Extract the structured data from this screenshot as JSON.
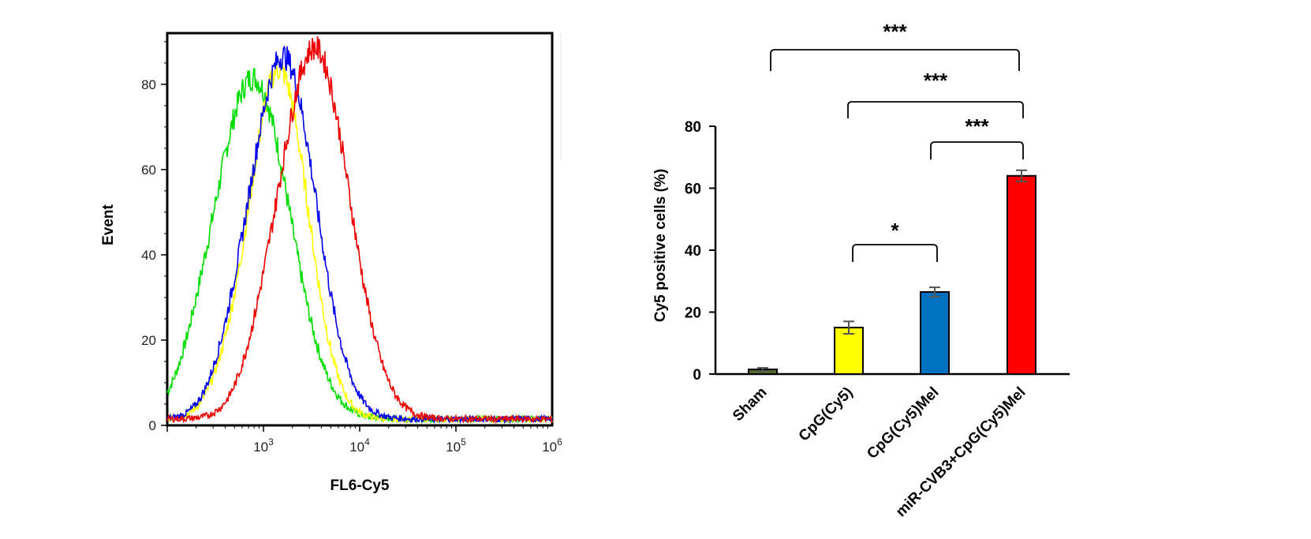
{
  "chart_data": [
    {
      "type": "line",
      "subtype": "flow-cytometry-histogram",
      "title": "",
      "xlabel": "FL6-Cy5",
      "ylabel": "Event",
      "xscale": "log",
      "xlim": [
        100,
        1000000
      ],
      "ylim": [
        0,
        92
      ],
      "yticks": [
        0,
        20,
        40,
        60,
        80
      ],
      "xtick_labels": [
        {
          "base": "10",
          "exp": "3",
          "value": 1000
        },
        {
          "base": "10",
          "exp": "4",
          "value": 10000
        },
        {
          "base": "10",
          "exp": "5",
          "value": 100000
        },
        {
          "base": "10",
          "exp": "6",
          "value": 1000000
        }
      ],
      "grid": false,
      "series": [
        {
          "color": "#00dd00",
          "peak_x": 780,
          "peak_y": 80,
          "width_decades": 0.38
        },
        {
          "color": "#ffff00",
          "peak_x": 1450,
          "peak_y": 82,
          "width_decades": 0.3
        },
        {
          "color": "#0000ee",
          "peak_x": 1600,
          "peak_y": 85,
          "width_decades": 0.34
        },
        {
          "color": "#ee0000",
          "peak_x": 3400,
          "peak_y": 87,
          "width_decades": 0.36
        }
      ]
    },
    {
      "type": "bar",
      "title": "",
      "xlabel": "",
      "ylabel": "Cy5 positive cells (%)",
      "ylim": [
        0,
        80
      ],
      "yticks": [
        0,
        20,
        40,
        60,
        80
      ],
      "grid": false,
      "categories": [
        "Sham",
        "CpG(Cy5)",
        "CpG(Cy5)Mel",
        "miR-CVB3+CpG(Cy5)Mel"
      ],
      "values": [
        1.5,
        15,
        26.5,
        64
      ],
      "errors": [
        0.5,
        2,
        1.5,
        1.8
      ],
      "colors": [
        "#556b2f",
        "#ffff00",
        "#0070c0",
        "#ff0000"
      ],
      "significance": [
        {
          "from": 1,
          "to": 2,
          "label": "*"
        },
        {
          "from": 2,
          "to": 3,
          "label": "***"
        },
        {
          "from": 1,
          "to": 3,
          "label": "***"
        },
        {
          "from": 0,
          "to": 3,
          "label": "***"
        }
      ]
    }
  ]
}
